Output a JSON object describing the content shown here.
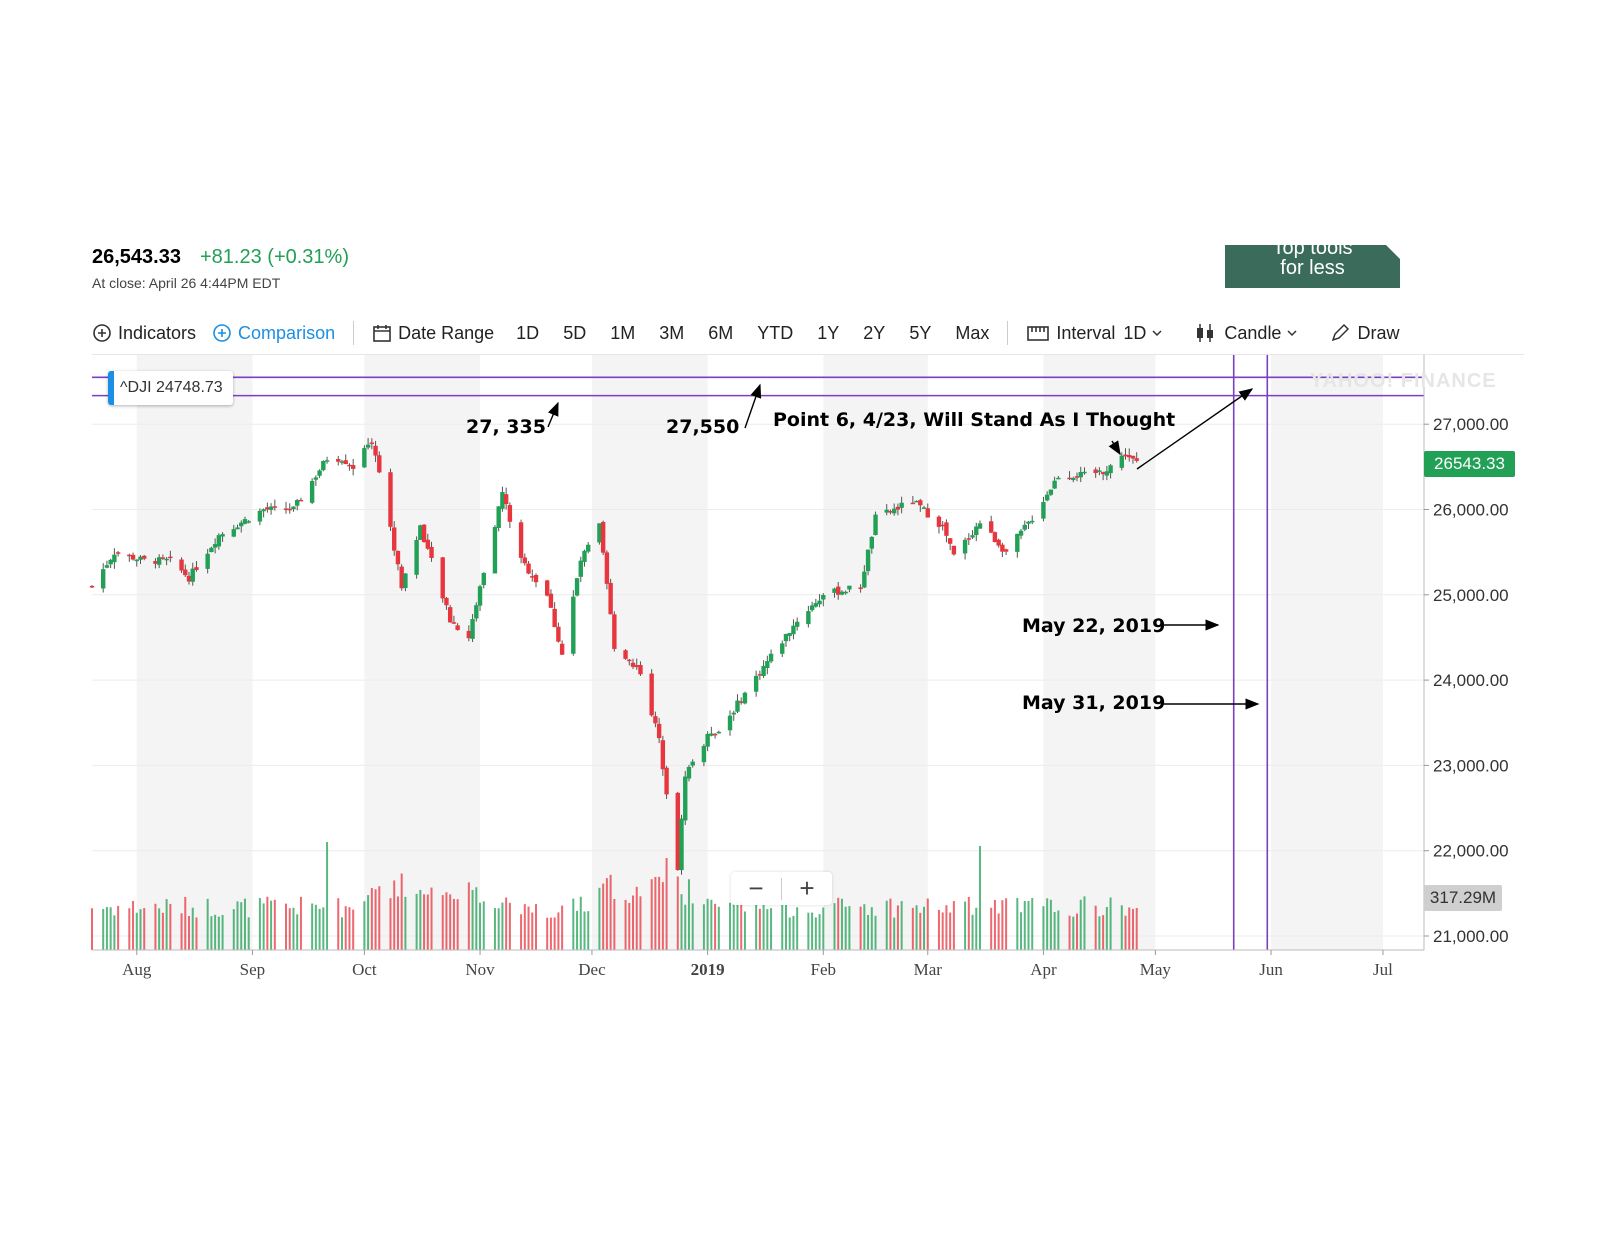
{
  "quote": {
    "price": "26,543.33",
    "change": "+81.23 (+0.31%)",
    "time": "At close: April 26 4:44PM EDT"
  },
  "promo": {
    "line1": "Top tools",
    "line2": "for less"
  },
  "toolbar": {
    "indicators": "Indicators",
    "comparison": "Comparison",
    "date_range": "Date Range",
    "ranges": [
      "1D",
      "5D",
      "1M",
      "3M",
      "6M",
      "YTD",
      "1Y",
      "2Y",
      "5Y",
      "Max"
    ],
    "interval_label": "Interval",
    "interval_value": "1D",
    "chart_type": "Candle",
    "draw": "Draw"
  },
  "zoom": {
    "minus": "−",
    "plus": "+"
  },
  "dji_label": "^DJI 24748.73",
  "price_tag": "26543.33",
  "volume_tag": "317.29M",
  "watermark": "YAHOO! FINANCE",
  "annotations": {
    "a1": "27, 335",
    "a2": "27,550",
    "a3": "Point 6, 4/23, Will Stand As I Thought",
    "a4": "May 22, 2019",
    "a5": "May 31, 2019"
  },
  "colors": {
    "up": "#21a056",
    "down": "#e8363f",
    "line": "#7b3fc4",
    "shade": "#f4f4f4"
  },
  "chart_data": {
    "type": "candlestick",
    "title": "",
    "ylabel": "",
    "ylim": [
      20900,
      27800
    ],
    "yticks": [
      "21,000.00",
      "22,000.00",
      "23,000.00",
      "24,000.00",
      "25,000.00",
      "26,000.00",
      "27,000.00"
    ],
    "ytick_values": [
      21000,
      22000,
      23000,
      24000,
      25000,
      26000,
      27000
    ],
    "xticks": [
      "Aug",
      "Sep",
      "Oct",
      "Nov",
      "Dec",
      "2019",
      "Feb",
      "Mar",
      "Apr",
      "May",
      "Jun",
      "Jul"
    ],
    "x_range": [
      "2018-07-20",
      "2019-07-12"
    ],
    "xtick_dates": [
      "2018-08-01",
      "2018-09-01",
      "2018-10-01",
      "2018-11-01",
      "2018-12-01",
      "2019-01-01",
      "2019-02-01",
      "2019-03-01",
      "2019-04-01",
      "2019-05-01",
      "2019-06-01",
      "2019-07-01"
    ],
    "price_path": [
      [
        "2018-07-20",
        25100
      ],
      [
        "2018-07-26",
        25500
      ],
      [
        "2018-08-03",
        25400
      ],
      [
        "2018-08-10",
        25400
      ],
      [
        "2018-08-15",
        25200
      ],
      [
        "2018-08-23",
        25700
      ],
      [
        "2018-09-04",
        26000
      ],
      [
        "2018-09-12",
        26000
      ],
      [
        "2018-09-21",
        26600
      ],
      [
        "2018-09-25",
        26600
      ],
      [
        "2018-09-28",
        26500
      ],
      [
        "2018-10-03",
        26800
      ],
      [
        "2018-10-05",
        26450
      ],
      [
        "2018-10-11",
        25100
      ],
      [
        "2018-10-16",
        25800
      ],
      [
        "2018-10-24",
        24700
      ],
      [
        "2018-10-29",
        24500
      ],
      [
        "2018-11-01",
        25100
      ],
      [
        "2018-11-07",
        26200
      ],
      [
        "2018-11-12",
        25400
      ],
      [
        "2018-11-19",
        25000
      ],
      [
        "2018-11-23",
        24300
      ],
      [
        "2018-11-28",
        25400
      ],
      [
        "2018-12-03",
        25800
      ],
      [
        "2018-12-07",
        24400
      ],
      [
        "2018-12-14",
        24100
      ],
      [
        "2018-12-19",
        23300
      ],
      [
        "2018-12-24",
        21800
      ],
      [
        "2018-12-26",
        22900
      ],
      [
        "2019-01-02",
        23400
      ],
      [
        "2019-01-04",
        23400
      ],
      [
        "2019-01-15",
        24100
      ],
      [
        "2019-01-25",
        24700
      ],
      [
        "2019-02-01",
        25000
      ],
      [
        "2019-02-11",
        25100
      ],
      [
        "2019-02-15",
        25900
      ],
      [
        "2019-02-25",
        26100
      ],
      [
        "2019-03-05",
        25800
      ],
      [
        "2019-03-08",
        25450
      ],
      [
        "2019-03-15",
        25850
      ],
      [
        "2019-03-22",
        25500
      ],
      [
        "2019-03-29",
        25900
      ],
      [
        "2019-04-05",
        26400
      ],
      [
        "2019-04-12",
        26400
      ],
      [
        "2019-04-17",
        26450
      ],
      [
        "2019-04-23",
        26650
      ],
      [
        "2019-04-26",
        26543
      ]
    ],
    "volume_range": [
      150000000,
      1200000000
    ],
    "reference_lines": {
      "horizontal": [
        27335,
        27550
      ],
      "vertical": [
        "2019-05-22",
        "2019-05-31"
      ]
    }
  }
}
